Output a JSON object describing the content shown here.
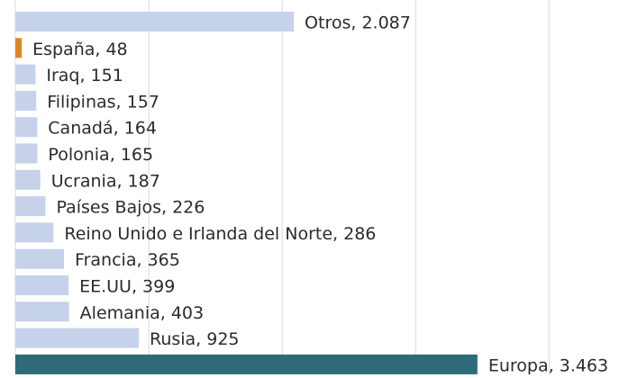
{
  "chart_data": {
    "type": "bar",
    "orientation": "horizontal",
    "categories": [
      "Otros",
      "España",
      "Iraq",
      "Filipinas",
      "Canadá",
      "Polonia",
      "Ucrania",
      "Países Bajos",
      "Reino Unido e Irlanda del Norte",
      "Francia",
      "EE.UU",
      "Alemania",
      "Rusia",
      "Europa"
    ],
    "values": [
      2087,
      48,
      151,
      157,
      164,
      165,
      187,
      226,
      286,
      365,
      399,
      403,
      925,
      3463
    ],
    "value_labels": [
      "Otros, 2.087",
      "España, 48",
      "Iraq, 151",
      "Filipinas, 157",
      "Canadá, 164",
      "Polonia, 165",
      "Ucrania, 187",
      "Países Bajos, 226",
      "Reino Unido e Irlanda del Norte, 286",
      "Francia, 365",
      "EE.UU, 399",
      "Alemania, 403",
      "Rusia, 925",
      "Europa, 3.463"
    ],
    "colors": [
      "#c6d1ea",
      "#e0861f",
      "#c6d1ea",
      "#c6d1ea",
      "#c6d1ea",
      "#c6d1ea",
      "#c6d1ea",
      "#c6d1ea",
      "#c6d1ea",
      "#c6d1ea",
      "#c6d1ea",
      "#c6d1ea",
      "#c6d1ea",
      "#2e6b78"
    ],
    "xlim": [
      0,
      4700
    ],
    "xticks": [
      0,
      1000,
      2000,
      3000,
      4000
    ],
    "grid": true
  }
}
